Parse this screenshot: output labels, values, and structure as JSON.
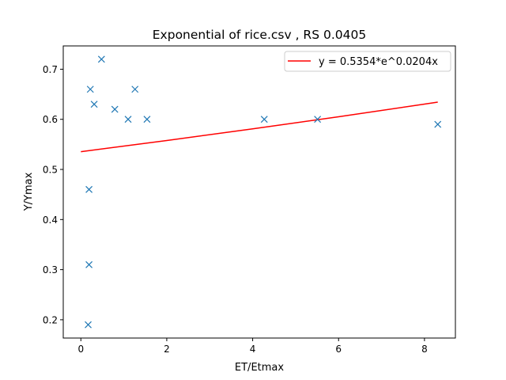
{
  "chart_data": {
    "type": "scatter",
    "title": "Exponential of rice.csv , RS 0.0405",
    "xlabel": "ET/Etmax",
    "ylabel": "Y/Ymax",
    "xlim": [
      -0.41,
      8.72
    ],
    "ylim": [
      0.1635,
      0.7465
    ],
    "xticks": [
      0,
      2,
      4,
      6,
      8
    ],
    "yticks": [
      0.2,
      0.3,
      0.4,
      0.5,
      0.6,
      0.7
    ],
    "xtick_labels": [
      "0",
      "2",
      "4",
      "6",
      "8"
    ],
    "ytick_labels": [
      "0.2",
      "0.3",
      "0.4",
      "0.5",
      "0.6",
      "0.7"
    ],
    "grid": false,
    "legend_position": "top-right",
    "series": [
      {
        "kind": "scatter",
        "marker": "x",
        "color": "#1f77b4",
        "points": [
          {
            "x": 0.48,
            "y": 0.72
          },
          {
            "x": 0.22,
            "y": 0.66
          },
          {
            "x": 1.26,
            "y": 0.66
          },
          {
            "x": 0.31,
            "y": 0.63
          },
          {
            "x": 0.79,
            "y": 0.62
          },
          {
            "x": 1.1,
            "y": 0.6
          },
          {
            "x": 1.54,
            "y": 0.6
          },
          {
            "x": 4.27,
            "y": 0.6
          },
          {
            "x": 5.51,
            "y": 0.6
          },
          {
            "x": 8.31,
            "y": 0.59
          },
          {
            "x": 0.19,
            "y": 0.46
          },
          {
            "x": 0.19,
            "y": 0.31
          },
          {
            "x": 0.17,
            "y": 0.19
          }
        ]
      },
      {
        "kind": "line",
        "name": "y = 0.5354*e^0.0204x",
        "color": "#ff0000",
        "x": [
          0,
          2,
          4,
          6,
          8,
          8.31
        ],
        "y": [
          0.5354,
          0.5577,
          0.5809,
          0.6051,
          0.6303,
          0.6343
        ]
      }
    ]
  }
}
